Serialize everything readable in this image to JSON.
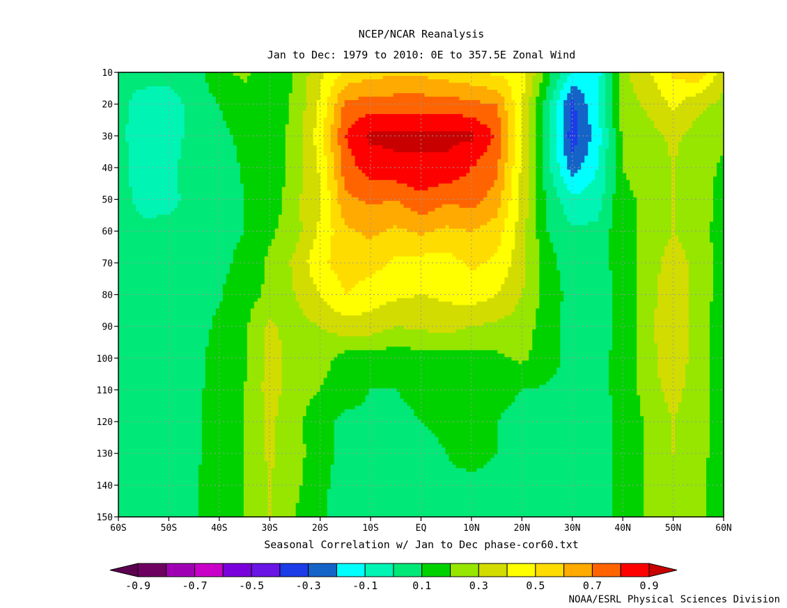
{
  "chart_data": {
    "type": "heatmap",
    "title": "NCEP/NCAR Reanalysis",
    "subtitle": "Jan to Dec: 1979 to 2010: 0E to 357.5E  Zonal Wind",
    "xlabel": "Seasonal Correlation w/ Jan to Dec phase-cor60.txt",
    "credit": "NOAA/ESRL Physical Sciences Division",
    "x_ticks": [
      "60S",
      "50S",
      "40S",
      "30S",
      "20S",
      "10S",
      "EQ",
      "10N",
      "20N",
      "30N",
      "40N",
      "50N",
      "60N"
    ],
    "y_ticks": [
      "10",
      "20",
      "30",
      "40",
      "50",
      "60",
      "70",
      "80",
      "90",
      "100",
      "110",
      "120",
      "130",
      "140",
      "150"
    ],
    "x": [
      -60,
      -55,
      -50,
      -45,
      -40,
      -35,
      -30,
      -25,
      -20,
      -15,
      -10,
      -5,
      0,
      5,
      10,
      15,
      20,
      25,
      30,
      35,
      40,
      45,
      50,
      55,
      60
    ],
    "y": [
      10,
      20,
      30,
      40,
      50,
      60,
      70,
      80,
      90,
      100,
      110,
      120,
      130,
      140,
      150
    ],
    "xlim": [
      -60,
      60
    ],
    "ylim": [
      10,
      150
    ],
    "y_inverted": true,
    "grid": true,
    "colorbar": {
      "levels": [
        -0.9,
        -0.8,
        -0.7,
        -0.6,
        -0.5,
        -0.4,
        -0.3,
        -0.2,
        -0.1,
        0,
        0.1,
        0.2,
        0.3,
        0.4,
        0.5,
        0.6,
        0.7,
        0.8,
        0.9
      ],
      "tick_labels": [
        "-0.9",
        "-0.7",
        "-0.5",
        "-0.3",
        "-0.1",
        "0.1",
        "0.3",
        "0.5",
        "0.7",
        "0.9"
      ],
      "colors": [
        "#5c0050",
        "#6e0060",
        "#a000b4",
        "#c800c8",
        "#7a00dc",
        "#6a14e6",
        "#1c3ce8",
        "#1464c8",
        "#00ffff",
        "#00f5b4",
        "#00e878",
        "#00d200",
        "#96e600",
        "#d2dc00",
        "#ffff00",
        "#ffdc00",
        "#ffaa00",
        "#ff6400",
        "#ff0000",
        "#c80000"
      ]
    },
    "values": [
      [
        0.03,
        0.05,
        0.04,
        0.05,
        0.18,
        0.22,
        0.12,
        0.21,
        0.38,
        0.52,
        0.56,
        0.58,
        0.58,
        0.55,
        0.52,
        0.48,
        0.46,
        0.15,
        -0.12,
        -0.15,
        0.28,
        0.38,
        0.52,
        0.58,
        0.32
      ],
      [
        0.03,
        -0.05,
        -0.05,
        0.04,
        0.1,
        0.16,
        0.12,
        0.22,
        0.42,
        0.72,
        0.75,
        0.75,
        0.75,
        0.75,
        0.72,
        0.7,
        0.4,
        0.05,
        -0.32,
        -0.1,
        0.25,
        0.32,
        0.42,
        0.32,
        0.28
      ],
      [
        0.04,
        -0.08,
        -0.05,
        0.04,
        0.08,
        0.12,
        0.13,
        0.24,
        0.45,
        0.8,
        0.92,
        0.92,
        0.92,
        0.92,
        0.92,
        0.78,
        0.42,
        0.04,
        -0.36,
        -0.15,
        0.22,
        0.26,
        0.32,
        0.26,
        0.22
      ],
      [
        0.04,
        -0.06,
        -0.02,
        0.04,
        0.06,
        0.11,
        0.12,
        0.24,
        0.42,
        0.75,
        0.85,
        0.88,
        0.88,
        0.88,
        0.8,
        0.72,
        0.38,
        0.04,
        -0.25,
        -0.1,
        0.2,
        0.24,
        0.3,
        0.25,
        0.18
      ],
      [
        0.04,
        -0.03,
        -0.03,
        0.04,
        0.06,
        0.1,
        0.12,
        0.28,
        0.38,
        0.68,
        0.72,
        0.7,
        0.78,
        0.72,
        0.74,
        0.66,
        0.36,
        0.08,
        -0.08,
        -0.05,
        0.18,
        0.22,
        0.3,
        0.25,
        0.16
      ],
      [
        0.04,
        0.02,
        0.03,
        0.04,
        0.08,
        0.1,
        0.18,
        0.26,
        0.42,
        0.58,
        0.62,
        0.58,
        0.62,
        0.58,
        0.6,
        0.55,
        0.35,
        0.1,
        0.02,
        0.02,
        0.18,
        0.22,
        0.3,
        0.24,
        0.16
      ],
      [
        0.04,
        0.04,
        0.06,
        0.05,
        0.08,
        0.12,
        0.22,
        0.32,
        0.48,
        0.55,
        0.54,
        0.48,
        0.46,
        0.46,
        0.52,
        0.48,
        0.34,
        0.14,
        0.04,
        0.04,
        0.16,
        0.24,
        0.36,
        0.26,
        0.15
      ],
      [
        0.04,
        0.05,
        0.06,
        0.05,
        0.09,
        0.16,
        0.22,
        0.3,
        0.4,
        0.5,
        0.45,
        0.42,
        0.4,
        0.42,
        0.45,
        0.4,
        0.3,
        0.16,
        0.06,
        0.04,
        0.14,
        0.26,
        0.38,
        0.26,
        0.15
      ],
      [
        0.05,
        0.05,
        0.06,
        0.06,
        0.12,
        0.18,
        0.32,
        0.26,
        0.3,
        0.36,
        0.35,
        0.3,
        0.32,
        0.34,
        0.3,
        0.28,
        0.26,
        0.14,
        0.06,
        0.06,
        0.13,
        0.26,
        0.4,
        0.24,
        0.14
      ],
      [
        0.05,
        0.05,
        0.07,
        0.07,
        0.14,
        0.18,
        0.34,
        0.26,
        0.24,
        0.16,
        0.16,
        0.14,
        0.16,
        0.16,
        0.16,
        0.18,
        0.22,
        0.14,
        0.07,
        0.07,
        0.13,
        0.26,
        0.38,
        0.24,
        0.14
      ],
      [
        0.05,
        0.05,
        0.07,
        0.07,
        0.15,
        0.2,
        0.34,
        0.25,
        0.2,
        0.14,
        0.1,
        0.1,
        0.12,
        0.14,
        0.14,
        0.12,
        0.1,
        0.09,
        0.07,
        0.07,
        0.13,
        0.25,
        0.34,
        0.24,
        0.14
      ],
      [
        0.06,
        0.04,
        0.08,
        0.08,
        0.15,
        0.2,
        0.32,
        0.24,
        0.12,
        0.08,
        0.08,
        0.08,
        0.1,
        0.12,
        0.16,
        0.1,
        0.08,
        0.08,
        0.07,
        0.07,
        0.12,
        0.22,
        0.3,
        0.24,
        0.14
      ],
      [
        0.06,
        0.05,
        0.08,
        0.08,
        0.15,
        0.2,
        0.32,
        0.24,
        0.14,
        0.07,
        0.07,
        0.07,
        0.07,
        0.1,
        0.14,
        0.1,
        0.08,
        0.08,
        0.07,
        0.07,
        0.12,
        0.22,
        0.3,
        0.24,
        0.14
      ],
      [
        0.06,
        0.06,
        0.08,
        0.09,
        0.15,
        0.2,
        0.3,
        0.22,
        0.14,
        0.03,
        0.02,
        0.03,
        0.05,
        0.08,
        0.07,
        0.07,
        0.07,
        0.06,
        0.07,
        0.07,
        0.12,
        0.22,
        0.28,
        0.22,
        0.14
      ],
      [
        0.06,
        0.06,
        0.08,
        0.09,
        0.16,
        0.2,
        0.3,
        0.2,
        0.12,
        0.03,
        0.03,
        0.03,
        0.03,
        0.05,
        0.06,
        0.03,
        0.03,
        0.06,
        0.07,
        0.07,
        0.12,
        0.22,
        0.28,
        0.22,
        0.14
      ]
    ]
  }
}
